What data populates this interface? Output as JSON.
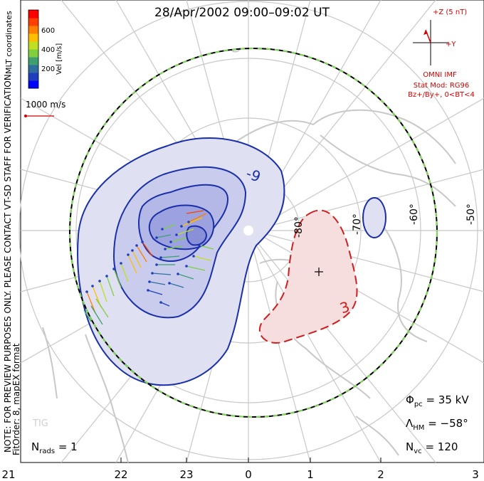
{
  "title": "28/Apr/2002 09:00–09:02 UT",
  "coord_label": "MLT coordinates",
  "preview_note": "NOTE: FOR PREVIEW PURPOSES ONLY. PLEASE CONTACT VT-SD STAFF FOR VERIFICATION.",
  "fit_order": "FitOrder: 8, mapEX format",
  "colorbar": {
    "label": "Vel [m/s]",
    "ticks": [
      "600",
      "400",
      "200"
    ],
    "colors": [
      "#0000ff",
      "#1f3fbf",
      "#2f6f9f",
      "#3f9f6f",
      "#7fcf3f",
      "#bfdf20",
      "#ffbf00",
      "#ff7f00",
      "#ff3f00",
      "#ff0000"
    ]
  },
  "vector_scale": "1000 m/s",
  "imf": {
    "z_label": "+Z (5 nT)",
    "y_label": "+Y",
    "title": "OMNI IMF",
    "model": "Stat Mod: RG96",
    "condition": "Bz+/By+, 0<BT<4"
  },
  "contours": {
    "negative_label": "-9",
    "positive_label": "3"
  },
  "lat_labels": [
    "-80°",
    "-70°",
    "-60°",
    "-50°"
  ],
  "mlt_labels": [
    "21",
    "22",
    "23",
    "0",
    "1",
    "2",
    "3"
  ],
  "station": "TIG",
  "stats": {
    "phi_symbol": "Φ",
    "phi_sub": "pc",
    "phi_value": "= 35 kV",
    "lambda_symbol": "Λ",
    "lambda_sub": "HM",
    "lambda_value": "= −58°",
    "nvc_symbol": "N",
    "nvc_sub": "vc",
    "nvc_value": "= 120",
    "nrads_symbol": "N",
    "nrads_sub": "rads",
    "nrads_value": "= 1"
  },
  "colors": {
    "negative_contour": "#1a2fa8",
    "positive_contour": "#cc1f1f",
    "negative_fill": "#dfe1f2",
    "positive_fill": "#f6dede",
    "boundary_green": "#7ed957"
  }
}
